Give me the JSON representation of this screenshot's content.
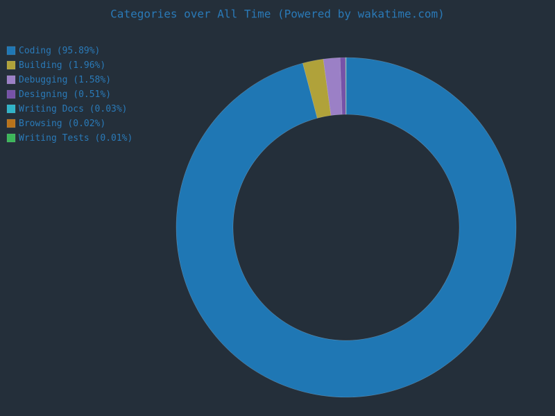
{
  "chart_data": {
    "type": "donut",
    "title": "Categories over All Time (Powered by wakatime.com)",
    "categories": [
      "Coding",
      "Building",
      "Debugging",
      "Designing",
      "Writing Docs",
      "Browsing",
      "Writing Tests"
    ],
    "values": [
      95.89,
      1.96,
      1.58,
      0.51,
      0.03,
      0.02,
      0.01
    ],
    "value_labels": [
      "(95.89%)",
      "(1.96%)",
      "(1.58%)",
      "(0.51%)",
      "(0.03%)",
      "(0.02%)",
      "(0.01%)"
    ],
    "colors": [
      "#1f77b4",
      "#b0a23a",
      "#9b80c6",
      "#7652a8",
      "#2fb3c8",
      "#b8731b",
      "#3cb65a"
    ],
    "legend": "top-left"
  }
}
